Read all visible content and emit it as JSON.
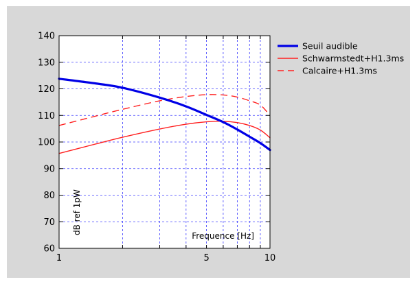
{
  "chart_data": {
    "type": "line",
    "x_scale": "log",
    "xlim": [
      1,
      10
    ],
    "ylim": [
      60,
      140
    ],
    "x_ticks": [
      1,
      5,
      10
    ],
    "x_tick_labels": [
      "1",
      "5",
      "10"
    ],
    "y_ticks": [
      60,
      70,
      80,
      90,
      100,
      110,
      120,
      130,
      140
    ],
    "y_tick_labels": [
      "60",
      "70",
      "80",
      "90",
      "100",
      "110",
      "120",
      "130",
      "140"
    ],
    "x_grid": [
      1,
      2,
      3,
      4,
      5,
      6,
      7,
      8,
      9,
      10
    ],
    "grid": true,
    "xlabel": "Frequence [Hz]",
    "ylabel": "dB ref 1pW",
    "legend_position": "right",
    "series": [
      {
        "name": "Seuil audible",
        "color": "#0000e6",
        "style": "solid-thick",
        "x": [
          1,
          1.5,
          2,
          3,
          4,
          5,
          6,
          7,
          8,
          9,
          10
        ],
        "y": [
          123.8,
          122,
          120.4,
          116.7,
          113.4,
          110.2,
          107.5,
          104.7,
          102,
          99.6,
          97
        ]
      },
      {
        "name": "Schwarmstedt+H1.3ms",
        "color": "#ff2020",
        "style": "solid",
        "x": [
          1,
          1.5,
          2,
          3,
          4,
          5,
          6,
          7,
          8,
          9,
          10
        ],
        "y": [
          95.7,
          99.3,
          101.8,
          104.9,
          106.7,
          107.6,
          107.8,
          107.3,
          106.2,
          104.5,
          101.6
        ]
      },
      {
        "name": "Calcaire+H1.3ms",
        "color": "#ff2020",
        "style": "dashed",
        "x": [
          1,
          1.5,
          2,
          3,
          4,
          5,
          6,
          7,
          8,
          9,
          10
        ],
        "y": [
          106.2,
          109.8,
          112.3,
          115.5,
          117.1,
          117.8,
          117.7,
          116.9,
          115.5,
          113.9,
          110
        ]
      }
    ]
  }
}
